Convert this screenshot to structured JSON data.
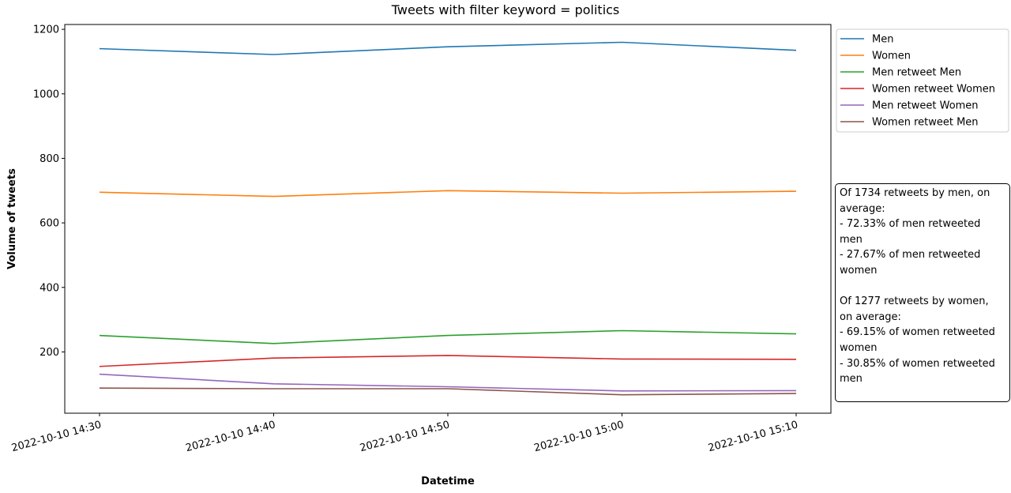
{
  "chart_data": {
    "type": "line",
    "title": "Tweets with filter keyword = politics",
    "xlabel": "Datetime",
    "ylabel": "Volume of tweets",
    "x": [
      "2022-10-10 14:30",
      "2022-10-10 14:40",
      "2022-10-10 14:50",
      "2022-10-10 15:00",
      "2022-10-10 15:10"
    ],
    "ylim": [
      10,
      1215
    ],
    "yticks": [
      200,
      400,
      600,
      800,
      1000,
      1200
    ],
    "grid": false,
    "legend_position": "outside-top-right",
    "series": [
      {
        "name": "Men",
        "color": "#1f77b4",
        "values": [
          1140,
          1122,
          1146,
          1160,
          1135
        ]
      },
      {
        "name": "Women",
        "color": "#ff7f0e",
        "values": [
          695,
          682,
          700,
          692,
          698
        ]
      },
      {
        "name": "Men retweet Men",
        "color": "#2ca02c",
        "values": [
          251,
          226,
          251,
          266,
          256
        ]
      },
      {
        "name": "Women retweet Women",
        "color": "#d62728",
        "values": [
          155,
          181,
          189,
          178,
          177
        ]
      },
      {
        "name": "Men retweet Women",
        "color": "#9467bd",
        "values": [
          131,
          101,
          92,
          79,
          80
        ]
      },
      {
        "name": "Women retweet Men",
        "color": "#8c564b",
        "values": [
          88,
          86,
          86,
          67,
          71
        ]
      }
    ],
    "annotation": {
      "men_block": [
        "Of 1734 retweets by men, on",
        "average:",
        "- 72.33% of men retweeted",
        "men",
        "- 27.67% of men retweeted",
        "women"
      ],
      "women_block": [
        "Of 1277 retweets by women,",
        "on average:",
        "- 69.15% of women retweeted",
        "women",
        "- 30.85% of women retweeted",
        "men"
      ]
    }
  }
}
